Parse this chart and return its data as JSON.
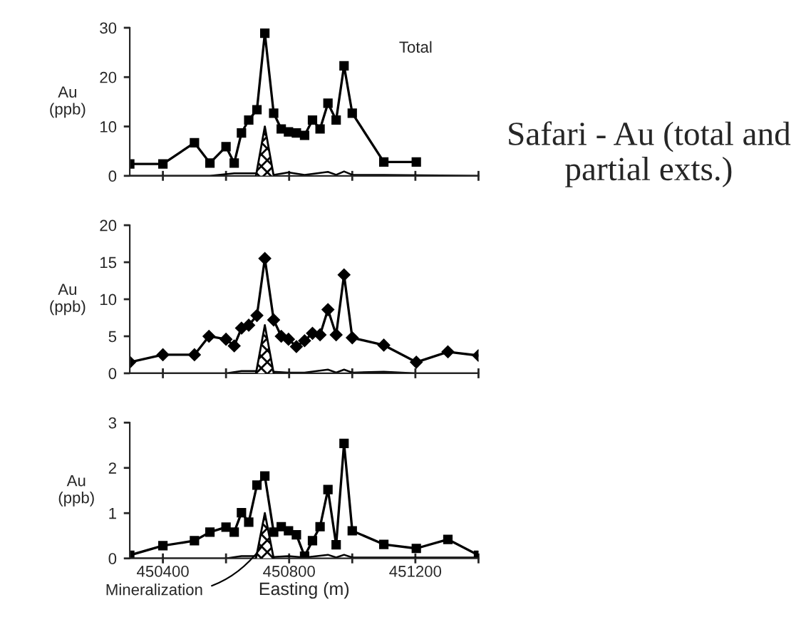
{
  "chart_data": [
    {
      "type": "line",
      "ylabel": "Au\n(ppb)",
      "annotations": [
        "Total"
      ],
      "xlim": [
        450295,
        451400
      ],
      "xticks": [
        {
          "value": 450400,
          "label": null
        },
        {
          "value": 450600,
          "label": null
        },
        {
          "value": 450800,
          "label": null
        },
        {
          "value": 451000,
          "label": null
        },
        {
          "value": 451200,
          "label": null
        },
        {
          "value": 451400,
          "label": null
        }
      ],
      "ylim": [
        0,
        30
      ],
      "yticks": [
        0,
        10,
        20,
        30
      ],
      "tick_labels": "y",
      "grid": false,
      "legend": false,
      "series": [
        {
          "color": "#000000",
          "marker": "square",
          "x": [
            450295,
            450400,
            450500,
            450549,
            450600,
            450626,
            450649,
            450672,
            450698,
            450723,
            450751,
            450775,
            450798,
            450823,
            450849,
            450874,
            450898,
            450923,
            450949,
            450974,
            451000,
            451100,
            451203
          ],
          "values": [
            2.4,
            2.4,
            6.7,
            2.6,
            5.9,
            2.6,
            8.7,
            11.3,
            13.4,
            28.9,
            12.7,
            9.5,
            8.9,
            8.7,
            8.2,
            11.3,
            9.5,
            14.7,
            11.3,
            22.3,
            12.7,
            2.8,
            2.8
          ]
        },
        {
          "color": "#000000",
          "marker": "none",
          "x": [
            450295,
            450549,
            450626,
            450698,
            450751,
            450798,
            450849,
            450923,
            450949,
            450974,
            451000,
            451100,
            451400
          ],
          "values": [
            0,
            0,
            0.5,
            0.5,
            0.2,
            0.7,
            0.2,
            0.8,
            0.2,
            0.9,
            0.2,
            0.2,
            0
          ]
        },
        {
          "type": "area",
          "color": "#000000",
          "x": [
            450695,
            450723,
            450751
          ],
          "values": [
            0,
            10,
            0
          ]
        }
      ]
    },
    {
      "type": "line",
      "ylabel": "Au\n(ppb)",
      "xlim": [
        450295,
        451400
      ],
      "xticks": [
        {
          "value": 450400,
          "label": null
        },
        {
          "value": 450600,
          "label": null
        },
        {
          "value": 450800,
          "label": null
        },
        {
          "value": 451000,
          "label": null
        },
        {
          "value": 451200,
          "label": null
        },
        {
          "value": 451400,
          "label": null
        }
      ],
      "ylim": [
        0,
        20
      ],
      "yticks": [
        0,
        5,
        10,
        15,
        20
      ],
      "tick_labels": "y",
      "grid": false,
      "legend": false,
      "series": [
        {
          "color": "#000000",
          "marker": "diamond",
          "x": [
            450295,
            450400,
            450500,
            450546,
            450600,
            450626,
            450649,
            450672,
            450698,
            450723,
            450751,
            450775,
            450798,
            450823,
            450849,
            450874,
            450898,
            450923,
            450949,
            450974,
            451000,
            451100,
            451203,
            451303,
            451400
          ],
          "values": [
            1.5,
            2.5,
            2.5,
            5.0,
            4.6,
            3.7,
            6.1,
            6.5,
            7.8,
            15.5,
            7.2,
            5.0,
            4.6,
            3.6,
            4.4,
            5.4,
            5.2,
            8.6,
            5.2,
            13.3,
            4.8,
            3.8,
            1.5,
            2.9,
            2.4
          ]
        },
        {
          "color": "#000000",
          "marker": "none",
          "x": [
            450295,
            450600,
            450649,
            450698,
            450751,
            450798,
            450849,
            450923,
            450949,
            450974,
            451000,
            451100,
            451203,
            451400
          ],
          "values": [
            0,
            0,
            0.3,
            0.3,
            0.2,
            0.1,
            0.1,
            0.5,
            0.1,
            0.5,
            0.1,
            0.2,
            0,
            0
          ]
        },
        {
          "type": "area",
          "color": "#000000",
          "x": [
            450695,
            450723,
            450751
          ],
          "values": [
            0,
            6.5,
            0
          ]
        }
      ]
    },
    {
      "type": "line",
      "ylabel": "Au\n(ppb)",
      "xlabel": "Easting (m)",
      "annotations": [
        {
          "text": "Mineralization",
          "x": 450718,
          "y": 0.3
        }
      ],
      "xlim": [
        450295,
        451400
      ],
      "xticks": [
        450400,
        {
          "value": 450600,
          "label": null
        },
        450800,
        {
          "value": 451000,
          "label": null
        },
        451200,
        {
          "value": 451400,
          "label": null
        }
      ],
      "ylim": [
        0,
        3
      ],
      "yticks": [
        0,
        1,
        2,
        3
      ],
      "grid": false,
      "legend": false,
      "series": [
        {
          "color": "#000000",
          "marker": "square",
          "x": [
            450295,
            450400,
            450500,
            450549,
            450600,
            450626,
            450649,
            450672,
            450698,
            450723,
            450751,
            450775,
            450798,
            450823,
            450849,
            450874,
            450898,
            450923,
            450949,
            450974,
            451000,
            451100,
            451203,
            451303,
            451400
          ],
          "values": [
            0.07,
            0.28,
            0.39,
            0.58,
            0.69,
            0.58,
            1.01,
            0.8,
            1.62,
            1.82,
            0.58,
            0.7,
            0.61,
            0.52,
            0.05,
            0.39,
            0.7,
            1.52,
            0.3,
            2.54,
            0.61,
            0.31,
            0.22,
            0.42,
            0.07
          ]
        },
        {
          "color": "#000000",
          "marker": "none",
          "x": [
            450295,
            450600,
            450649,
            450698,
            450751,
            450798,
            450849,
            450923,
            450949,
            450974,
            451000,
            451400
          ],
          "values": [
            0,
            0,
            0.05,
            0.05,
            0.03,
            0.05,
            0.02,
            0.08,
            0.02,
            0.08,
            0.02,
            0.02
          ]
        },
        {
          "type": "area",
          "color": "#000000",
          "x": [
            450695,
            450723,
            450751
          ],
          "values": [
            0,
            1.0,
            0
          ]
        }
      ]
    },
    {
      "type": "other",
      "title": "Safari - Au (total and partial exts.)"
    }
  ]
}
